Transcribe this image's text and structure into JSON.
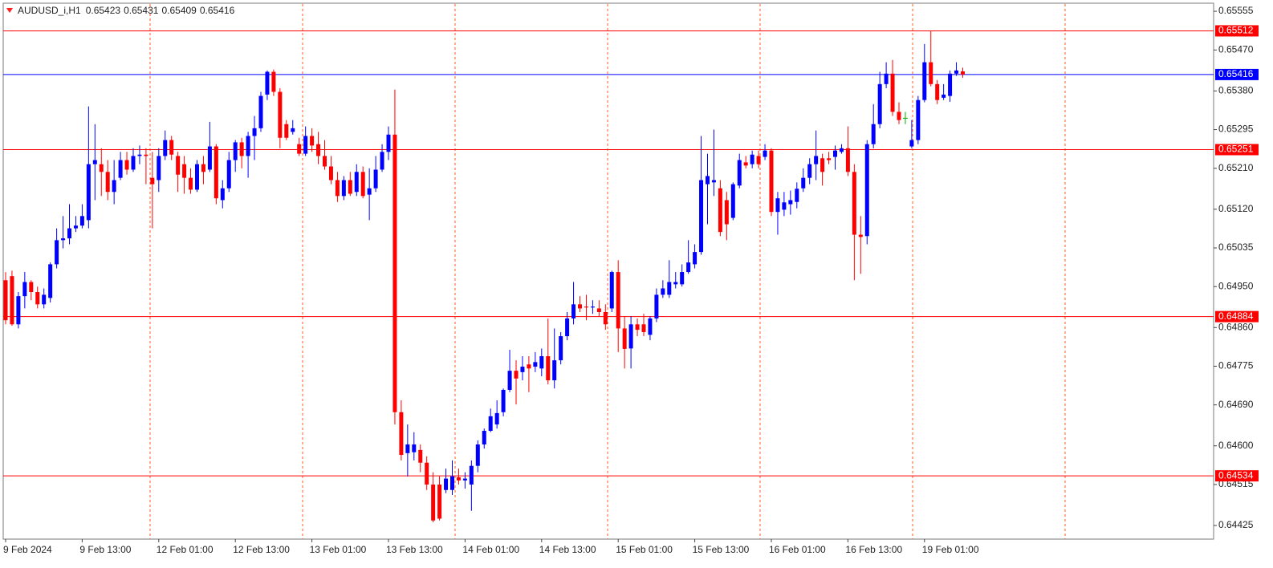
{
  "chart_data": {
    "type": "candlestick",
    "symbol": "AUDUSD_i,H1",
    "header_ohlc": [
      0.65423,
      0.65431,
      0.65409,
      0.65416
    ],
    "up_color": "#0000ff",
    "down_color": "#ff0000",
    "doji_color": "#00b000",
    "ylim": [
      0.64395,
      0.65571
    ],
    "yticks": [
      0.65555,
      {
        "value": 0.6547,
        "label": "0.65470"
      },
      {
        "value": 0.6538,
        "label": "0.65380"
      },
      0.65295,
      {
        "value": 0.6521,
        "label": "0.65210"
      },
      {
        "value": 0.6512,
        "label": "0.65120"
      },
      0.65035,
      {
        "value": 0.6495,
        "label": "0.64950"
      },
      {
        "value": 0.6486,
        "label": "0.64860"
      },
      0.64775,
      {
        "value": 0.6469,
        "label": "0.64690"
      },
      {
        "value": 0.646,
        "label": "0.64600"
      },
      0.64515,
      0.64425
    ],
    "levels": [
      {
        "value": 0.65512,
        "color": "#ff0000"
      },
      {
        "value": 0.65416,
        "color": "#0000ff"
      },
      {
        "value": 0.65251,
        "color": "#ff0000"
      },
      {
        "value": 0.64884,
        "color": "#ff0000"
      },
      {
        "value": 0.64534,
        "color": "#ff0000"
      }
    ],
    "categories": [
      "9 Feb 2024",
      null,
      null,
      null,
      null,
      null,
      null,
      null,
      null,
      null,
      null,
      null,
      "9 Feb 13:00",
      null,
      null,
      null,
      null,
      null,
      null,
      null,
      null,
      null,
      null,
      null,
      "12 Feb 01:00",
      null,
      null,
      null,
      null,
      null,
      null,
      null,
      null,
      null,
      null,
      null,
      "12 Feb 13:00",
      null,
      null,
      null,
      null,
      null,
      null,
      null,
      null,
      null,
      null,
      null,
      "13 Feb 01:00",
      null,
      null,
      null,
      null,
      null,
      null,
      null,
      null,
      null,
      null,
      null,
      "13 Feb 13:00",
      null,
      null,
      null,
      null,
      null,
      null,
      null,
      null,
      null,
      null,
      null,
      "14 Feb 01:00",
      null,
      null,
      null,
      null,
      null,
      null,
      null,
      null,
      null,
      null,
      null,
      "14 Feb 13:00",
      null,
      null,
      null,
      null,
      null,
      null,
      null,
      null,
      null,
      null,
      null,
      "15 Feb 01:00",
      null,
      null,
      null,
      null,
      null,
      null,
      null,
      null,
      null,
      null,
      null,
      "15 Feb 13:00",
      null,
      null,
      null,
      null,
      null,
      null,
      null,
      null,
      null,
      null,
      null,
      "16 Feb 01:00",
      null,
      null,
      null,
      null,
      null,
      null,
      null,
      null,
      null,
      null,
      null,
      "16 Feb 13:00",
      null,
      null,
      null,
      null,
      null,
      null,
      null,
      null,
      null,
      null,
      null,
      "19 Feb 01:00",
      null,
      null,
      null,
      null,
      null,
      null
    ],
    "open": [
      0.64964,
      0.64973,
      0.64867,
      0.64929,
      0.6496,
      0.64938,
      0.64911,
      0.64925,
      0.64999,
      0.65052,
      0.65056,
      0.65078,
      0.65084,
      0.65096,
      0.65219,
      0.65219,
      0.65202,
      0.65158,
      0.65189,
      0.65228,
      0.65207,
      0.65237,
      0.6524,
      0.65189,
      0.65184,
      0.65237,
      0.65272,
      0.65237,
      0.65219,
      0.65189,
      0.65163,
      0.65219,
      0.65207,
      0.65258,
      0.6514,
      0.65166,
      0.65228,
      0.65267,
      0.65237,
      0.65281,
      0.65298,
      0.65372,
      0.65422,
      0.65378,
      0.65307,
      0.6529,
      0.65263,
      0.65242,
      0.65281,
      0.65263,
      0.65237,
      0.65214,
      0.65184,
      0.65149,
      0.65184,
      0.65158,
      0.65202,
      0.65152,
      0.65166,
      0.65207,
      0.65246,
      0.65284,
      0.64674,
      0.64584,
      0.64586,
      0.64591,
      0.64563,
      0.64515,
      0.64515,
      0.64503,
      0.64503,
      0.64531,
      0.64524,
      0.64515,
      0.64556,
      0.64603,
      0.64633,
      0.64647,
      0.64674,
      0.64723,
      0.64765,
      0.64762,
      0.64779,
      0.64774,
      0.6477,
      0.64797,
      0.64744,
      0.64788,
      0.64841,
      0.6488,
      0.64911,
      0.64906,
      0.64904,
      0.64902,
      0.64894,
      0.64902,
      0.64982,
      0.64858,
      0.64814,
      0.64867,
      0.64867,
      0.64844,
      0.6488,
      0.64932,
      0.64932,
      0.64955,
      0.64955,
      0.64982,
      0.64999,
      0.65026,
      0.65175,
      0.65179,
      0.65166,
      0.6514,
      0.65101,
      0.65172,
      0.65223,
      0.65219,
      0.65237,
      0.65235,
      0.65249,
      0.65114,
      0.65119,
      0.65131,
      0.65136,
      0.65166,
      0.65189,
      0.65219,
      0.65232,
      0.65232,
      0.65235,
      0.65246,
      0.65254,
      0.65202,
      0.65064,
      0.65061,
      0.65263,
      0.65307,
      0.65395,
      0.65418,
      0.65334,
      0.6532,
      0.65258,
      0.65272,
      0.6536,
      0.65443,
      0.65395,
      0.65365,
      0.65369,
      0.65418,
      0.65423
    ],
    "high": [
      0.64982,
      0.64985,
      0.64938,
      0.64982,
      0.64964,
      0.6495,
      0.64946,
      0.65003,
      0.65078,
      0.65105,
      0.65131,
      0.65105,
      0.65131,
      0.65346,
      0.65307,
      0.65254,
      0.65228,
      0.65228,
      0.65246,
      0.65246,
      0.65254,
      0.6526,
      0.65254,
      0.65246,
      0.65254,
      0.65293,
      0.65281,
      0.65246,
      0.65237,
      0.6521,
      0.65228,
      0.65237,
      0.65312,
      0.65263,
      0.65184,
      0.65246,
      0.65272,
      0.65277,
      0.6529,
      0.65325,
      0.65378,
      0.65425,
      0.65427,
      0.65386,
      0.65316,
      0.65316,
      0.65277,
      0.65302,
      0.65298,
      0.6529,
      0.65272,
      0.65237,
      0.65202,
      0.65193,
      0.65202,
      0.65219,
      0.65214,
      0.6521,
      0.65237,
      0.65263,
      0.65302,
      0.65383,
      0.647,
      0.64647,
      0.6463,
      0.64603,
      0.64577,
      0.64542,
      0.64533,
      0.6455,
      0.64568,
      0.6455,
      0.64542,
      0.64568,
      0.64612,
      0.64638,
      0.64682,
      0.647,
      0.64726,
      0.64811,
      0.64788,
      0.64797,
      0.64797,
      0.64806,
      0.64814,
      0.6488,
      0.64858,
      0.6485,
      0.64894,
      0.6496,
      0.64929,
      0.64932,
      0.6492,
      0.6492,
      0.64911,
      0.64985,
      0.65008,
      0.64885,
      0.64885,
      0.6488,
      0.6489,
      0.64885,
      0.64946,
      0.64964,
      0.65008,
      0.64982,
      0.64999,
      0.65052,
      0.65043,
      0.65281,
      0.65242,
      0.65295,
      0.65184,
      0.65158,
      0.65179,
      0.65242,
      0.65237,
      0.65249,
      0.65249,
      0.65263,
      0.65254,
      0.65158,
      0.65158,
      0.65161,
      0.65179,
      0.6521,
      0.65232,
      0.65293,
      0.65242,
      0.65246,
      0.6526,
      0.65263,
      0.65302,
      0.65219,
      0.65105,
      0.65272,
      0.65351,
      0.65422,
      0.65443,
      0.65448,
      0.65355,
      0.65334,
      0.65316,
      0.65369,
      0.65483,
      0.65512,
      0.65404,
      0.65395,
      0.65425,
      0.65443,
      0.65431
    ],
    "low": [
      0.64867,
      0.64864,
      0.64858,
      0.64902,
      0.6492,
      0.64902,
      0.64902,
      0.64915,
      0.6499,
      0.65034,
      0.65043,
      0.6507,
      0.65078,
      0.65078,
      0.6514,
      0.65149,
      0.6514,
      0.65131,
      0.65184,
      0.65196,
      0.65202,
      0.65219,
      0.65175,
      0.65078,
      0.65158,
      0.65228,
      0.65228,
      0.65158,
      0.65154,
      0.65154,
      0.65158,
      0.65175,
      0.65202,
      0.65131,
      0.65122,
      0.65158,
      0.65202,
      0.6521,
      0.65189,
      0.65228,
      0.6529,
      0.6536,
      0.65369,
      0.65254,
      0.65272,
      0.65284,
      0.65237,
      0.65237,
      0.65246,
      0.65219,
      0.65207,
      0.65175,
      0.65136,
      0.6514,
      0.65149,
      0.65149,
      0.65144,
      0.65096,
      0.65158,
      0.65202,
      0.65228,
      0.64647,
      0.64568,
      0.64533,
      0.64568,
      0.64542,
      0.64503,
      0.64432,
      0.64436,
      0.64496,
      0.64492,
      0.64515,
      0.64506,
      0.64457,
      0.64542,
      0.64594,
      0.6463,
      0.64638,
      0.64665,
      0.64718,
      0.64691,
      0.64744,
      0.64718,
      0.64762,
      0.64753,
      0.64735,
      0.64726,
      0.64779,
      0.64832,
      0.64867,
      0.64894,
      0.64876,
      0.6489,
      0.64885,
      0.64855,
      0.64894,
      0.64806,
      0.6477,
      0.6477,
      0.64841,
      0.64841,
      0.64832,
      0.64872,
      0.64925,
      0.64925,
      0.64946,
      0.6495,
      0.64978,
      0.6499,
      0.6502,
      0.65087,
      0.65149,
      0.65061,
      0.65052,
      0.65096,
      0.65166,
      0.6521,
      0.6521,
      0.6521,
      0.65228,
      0.65105,
      0.65064,
      0.65105,
      0.65108,
      0.65122,
      0.65158,
      0.65175,
      0.65184,
      0.65172,
      0.65219,
      0.65207,
      0.65242,
      0.65193,
      0.64964,
      0.64978,
      0.65043,
      0.65254,
      0.65298,
      0.65386,
      0.65325,
      0.65307,
      0.65307,
      0.65254,
      0.65263,
      0.65355,
      0.6539,
      0.65351,
      0.6536,
      0.65356,
      0.65413,
      0.65409
    ],
    "close": [
      0.64876,
      0.64867,
      0.64929,
      0.6496,
      0.64938,
      0.64911,
      0.64932,
      0.64999,
      0.65052,
      0.65056,
      0.65078,
      0.65084,
      0.65105,
      0.65219,
      0.65228,
      0.65202,
      0.65158,
      0.65184,
      0.65228,
      0.65207,
      0.65237,
      0.6524,
      0.65237,
      0.65175,
      0.65237,
      0.65272,
      0.6524,
      0.65196,
      0.65189,
      0.65163,
      0.65219,
      0.65202,
      0.65258,
      0.65144,
      0.65166,
      0.65228,
      0.65267,
      0.65237,
      0.65281,
      0.65298,
      0.65369,
      0.65422,
      0.65378,
      0.65277,
      0.65277,
      0.65298,
      0.65242,
      0.65281,
      0.6526,
      0.65237,
      0.65214,
      0.65184,
      0.65149,
      0.65184,
      0.65154,
      0.65202,
      0.65149,
      0.65166,
      0.65207,
      0.65246,
      0.65284,
      0.64674,
      0.6458,
      0.64603,
      0.64603,
      0.64563,
      0.64515,
      0.64436,
      0.6444,
      0.64528,
      0.64533,
      0.64524,
      0.64528,
      0.64556,
      0.64603,
      0.64633,
      0.64665,
      0.64672,
      0.64723,
      0.64765,
      0.64748,
      0.64774,
      0.6477,
      0.64784,
      0.64797,
      0.64744,
      0.64788,
      0.64841,
      0.6488,
      0.64911,
      0.64902,
      0.64904,
      0.64906,
      0.64894,
      0.64867,
      0.64982,
      0.64858,
      0.64813,
      0.64867,
      0.64855,
      0.6485,
      0.6488,
      0.64932,
      0.64946,
      0.6496,
      0.6496,
      0.64982,
      0.65003,
      0.65026,
      0.65184,
      0.65193,
      0.65184,
      0.6507,
      0.65087,
      0.65175,
      0.65228,
      0.65216,
      0.6524,
      0.65219,
      0.65249,
      0.65114,
      0.65144,
      0.65135,
      0.6514,
      0.65165,
      0.65189,
      0.65219,
      0.65237,
      0.65202,
      0.65228,
      0.65249,
      0.65254,
      0.65202,
      0.65064,
      0.65059,
      0.65263,
      0.65307,
      0.65395,
      0.65418,
      0.65334,
      0.65316,
      0.6532,
      0.65272,
      0.6536,
      0.65443,
      0.65395,
      0.6536,
      0.65372,
      0.65418,
      0.65425,
      0.65416
    ]
  }
}
